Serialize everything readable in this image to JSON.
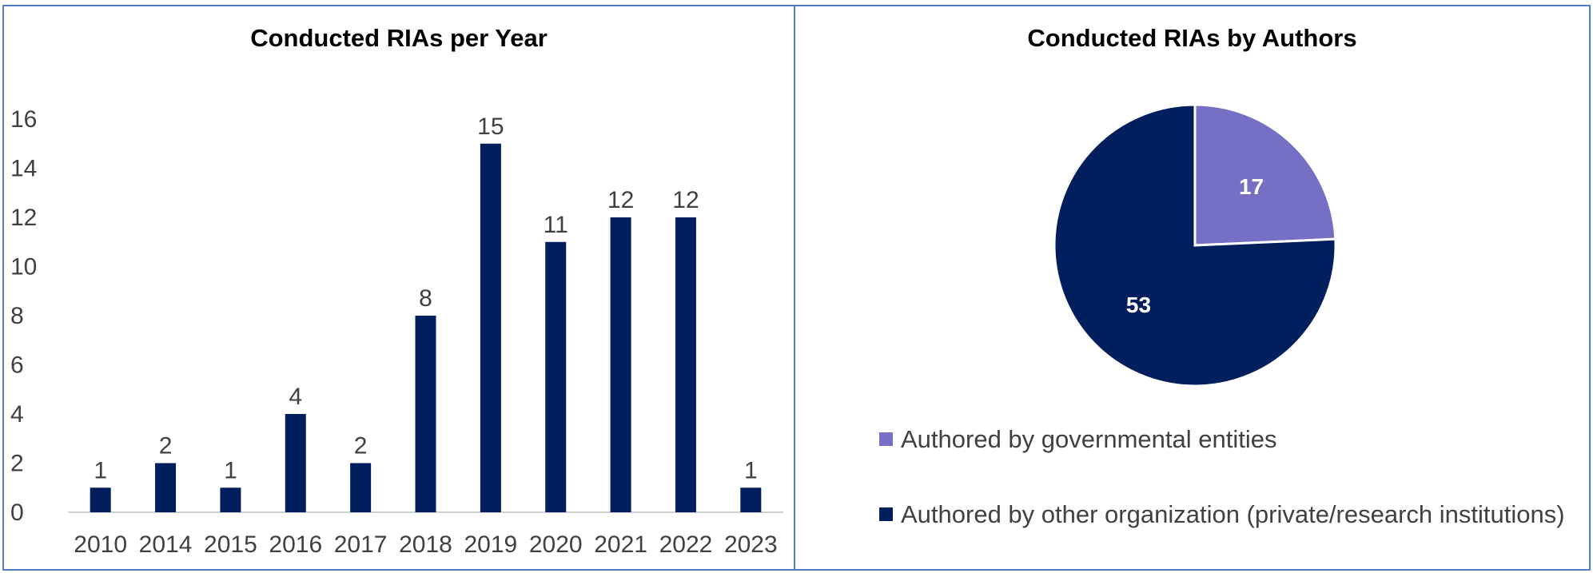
{
  "chart_data": [
    {
      "type": "bar",
      "title": "Conducted RIAs per Year",
      "categories": [
        "2010",
        "2014",
        "2015",
        "2016",
        "2017",
        "2018",
        "2019",
        "2020",
        "2021",
        "2022",
        "2023"
      ],
      "values": [
        1,
        2,
        1,
        4,
        2,
        8,
        15,
        11,
        12,
        12,
        1
      ],
      "ylim": [
        0,
        16
      ],
      "yticks": [
        0,
        2,
        4,
        6,
        8,
        10,
        12,
        14,
        16
      ],
      "grid": false,
      "data_labels": true,
      "colors": {
        "bar": "#001f5c"
      }
    },
    {
      "type": "pie",
      "title": "Conducted RIAs by Authors",
      "labels": [
        "Authored by governmental entities",
        "Authored by other organization (private/research institutions)"
      ],
      "values": [
        17,
        53
      ],
      "legend": "bottom",
      "colors": [
        "#7570c6",
        "#001f5c"
      ]
    }
  ]
}
